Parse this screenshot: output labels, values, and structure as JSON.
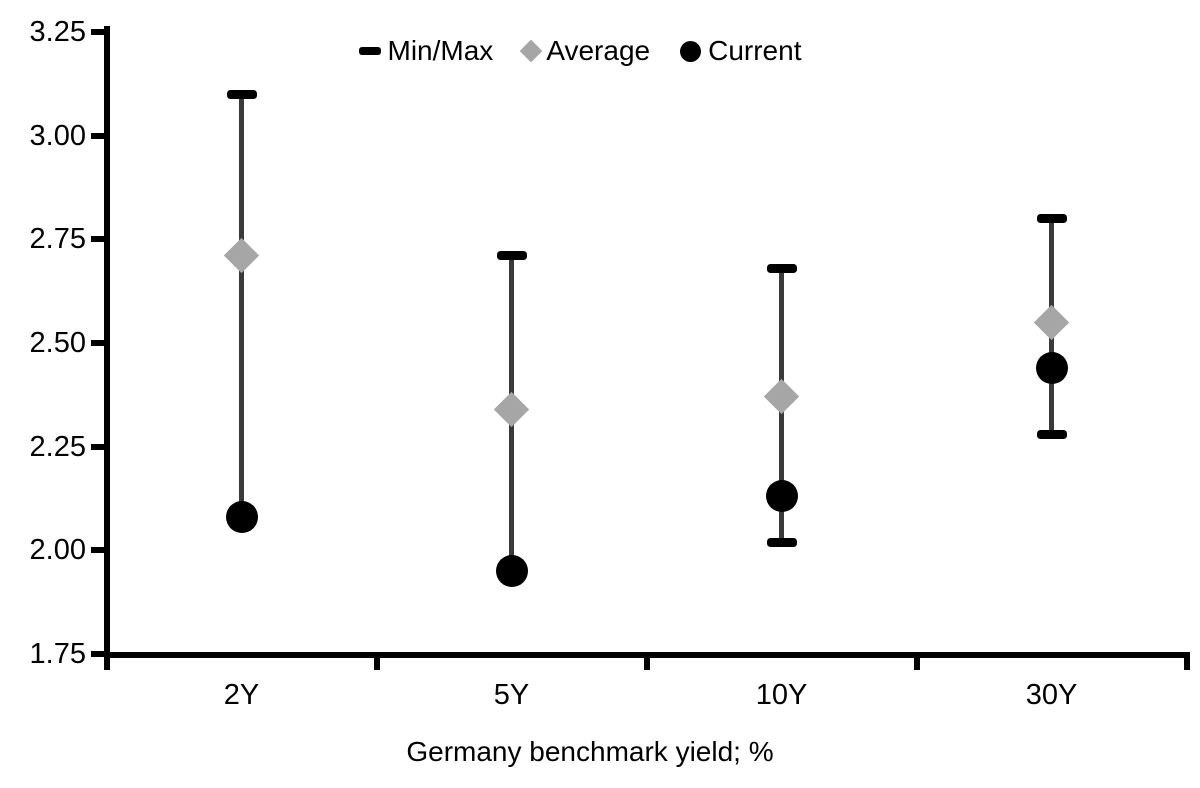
{
  "chart_data": {
    "type": "scatter",
    "subtype": "min-max-range-with-markers",
    "categories": [
      "2Y",
      "5Y",
      "10Y",
      "30Y"
    ],
    "series": [
      {
        "name": "Min/Max",
        "marker": "dash",
        "min": [
          2.08,
          1.95,
          2.02,
          2.28
        ],
        "max": [
          3.1,
          2.71,
          2.68,
          2.8
        ]
      },
      {
        "name": "Average",
        "marker": "diamond",
        "values": [
          2.71,
          2.34,
          2.37,
          2.55
        ]
      },
      {
        "name": "Current",
        "marker": "circle",
        "values": [
          2.08,
          1.95,
          2.13,
          2.44
        ]
      }
    ],
    "title": "",
    "xlabel": "Germany benchmark yield; %",
    "ylabel": "",
    "ylim": [
      1.75,
      3.25
    ],
    "ytick_interval": 0.25,
    "ytick_labels": [
      "3.25",
      "3.00",
      "2.75",
      "2.50",
      "2.25",
      "2.00",
      "1.75"
    ],
    "grid": false,
    "legend_position": "top-center",
    "legend_entries": [
      {
        "label": "Min/Max",
        "icon": "dash-icon"
      },
      {
        "label": "Average",
        "icon": "diamond-icon"
      },
      {
        "label": "Current",
        "icon": "circle-icon"
      }
    ],
    "colors": {
      "cap": "#000000",
      "range_line": "#3a3a3a",
      "average_marker": "#a6a6a6",
      "current_marker": "#000000",
      "axis": "#000000",
      "text": "#000000",
      "background": "#ffffff"
    }
  }
}
